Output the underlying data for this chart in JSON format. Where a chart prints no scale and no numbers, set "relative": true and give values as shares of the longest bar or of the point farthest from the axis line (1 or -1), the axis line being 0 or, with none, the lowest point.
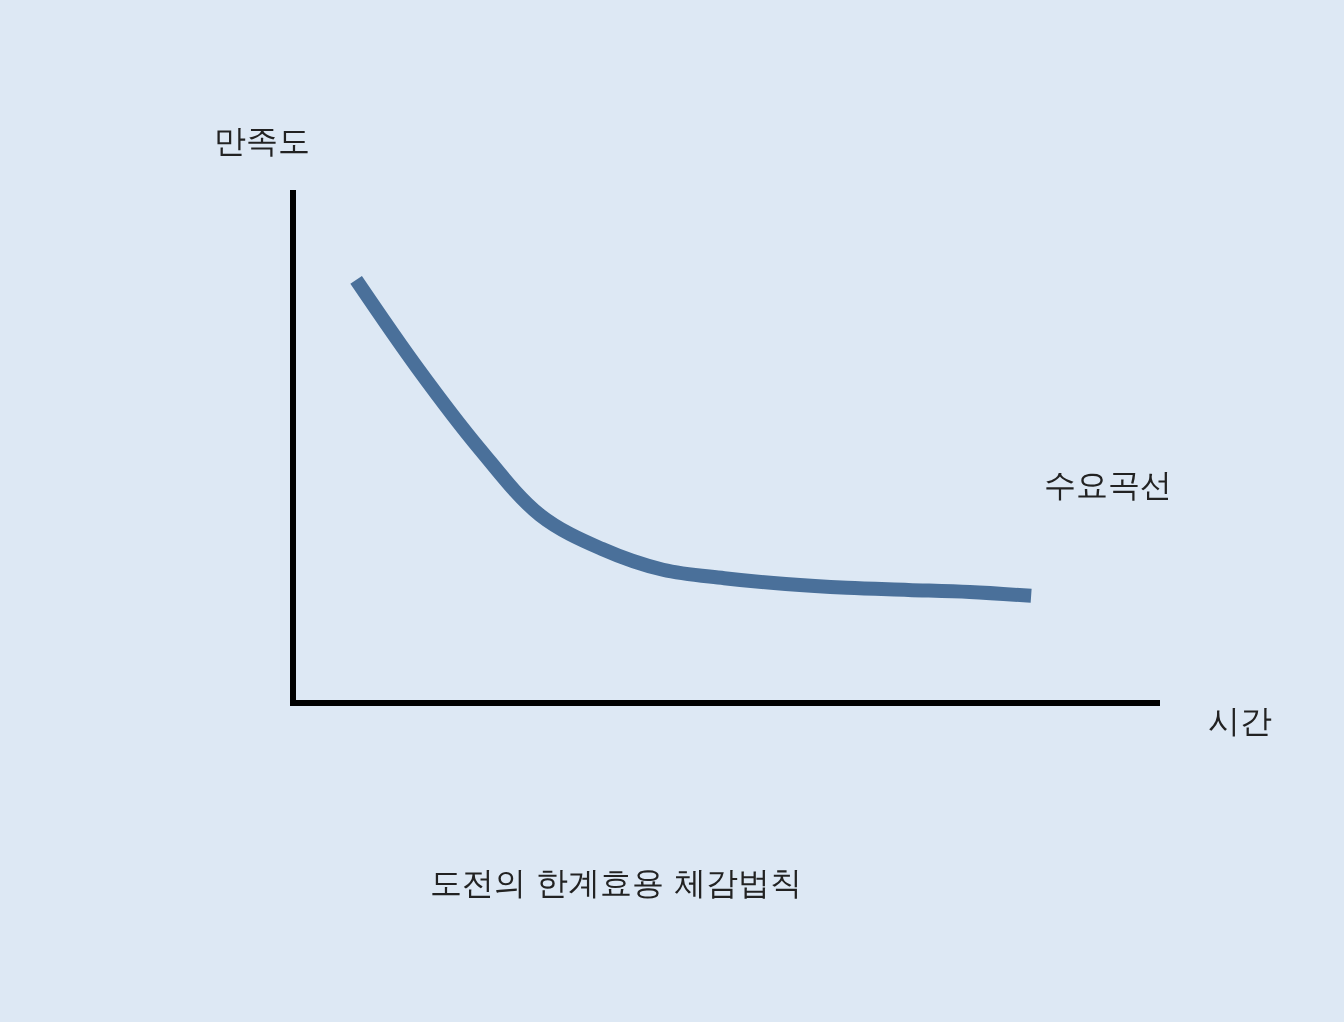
{
  "chart_data": {
    "type": "line",
    "relative": true,
    "xlabel": "시간",
    "ylabel": "만족도",
    "categories": [
      null,
      null,
      null,
      null,
      null,
      null,
      null,
      null,
      null,
      null,
      null,
      null
    ],
    "series": [
      {
        "color": "#4a709a",
        "values": [
          1.0,
          0.79,
          0.6,
          0.44,
          0.36,
          0.31,
          0.29,
          0.276,
          0.267,
          0.262,
          0.257,
          0.248
        ]
      }
    ],
    "annotations": [
      "수요곡선",
      "도전의 한계효용 체감법칙"
    ],
    "grid": false,
    "marker": "none",
    "line_style": "solid"
  }
}
